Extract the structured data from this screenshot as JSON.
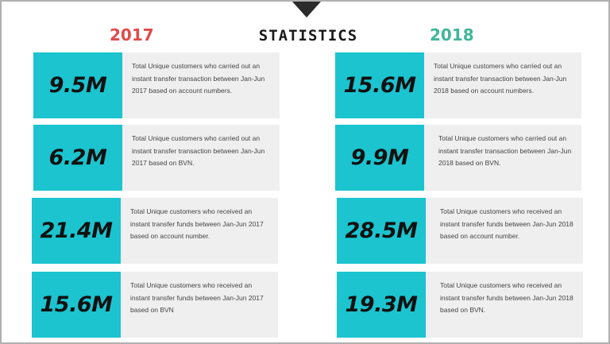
{
  "colors": {
    "accent": "#1bc4cf",
    "year_2017": "#e04a4a",
    "year_2018": "#3fb59a",
    "card_bg": "#efefef"
  },
  "header": {
    "title": "STATISTICS",
    "year_left": "2017",
    "year_right": "2018"
  },
  "left": [
    {
      "value": "9.5M",
      "text": "Total Unique customers who carried out an instant transfer transaction between Jan-Jun 2017 based on account numbers."
    },
    {
      "value": "6.2M",
      "text": "Total Unique customers who carried out an instant transfer transaction between Jan-Jun 2017 based on BVN."
    },
    {
      "value": "21.4M",
      "text": "Total Unique customers who received an instant transfer funds between Jan-Jun 2017 based on account number."
    },
    {
      "value": "15.6M",
      "text": "Total Unique customers who received an instant transfer funds between Jan-Jun 2017 based on BVN"
    }
  ],
  "right": [
    {
      "value": "15.6M",
      "text": "Total Unique customers who carried out an instant transfer transaction between Jan-Jun 2018 based on account numbers."
    },
    {
      "value": "9.9M",
      "text": "Total Unique customers who carried out an instant transfer transaction between Jan-Jun 2018 based on BVN."
    },
    {
      "value": "28.5M",
      "text": "Total Unique customers who received an instant transfer funds between Jan-Jun 2018 based on account number."
    },
    {
      "value": "19.3M",
      "text": "Total Unique customers who received an instant transfer funds between Jan-Jun 2018 based on BVN."
    }
  ]
}
